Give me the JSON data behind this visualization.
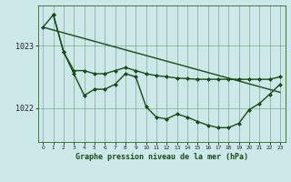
{
  "background_color": "#cce8e8",
  "grid_color": "#2d622d",
  "line_color": "#1a4a1a",
  "xlabel": "Graphe pression niveau de la mer (hPa)",
  "xlim": [
    -0.5,
    23.5
  ],
  "ylim": [
    1021.45,
    1023.65
  ],
  "yticks": [
    1022,
    1023
  ],
  "xticks": [
    0,
    1,
    2,
    3,
    4,
    5,
    6,
    7,
    8,
    9,
    10,
    11,
    12,
    13,
    14,
    15,
    16,
    17,
    18,
    19,
    20,
    21,
    22,
    23
  ],
  "series": [
    {
      "x": [
        0,
        23
      ],
      "y": [
        1023.3,
        1022.25
      ],
      "marker": false,
      "linewidth": 1.0
    },
    {
      "x": [
        0,
        1,
        2,
        3,
        4,
        5,
        6,
        7,
        8,
        9,
        10,
        11,
        12,
        13,
        14,
        15,
        16,
        17,
        18,
        19,
        20,
        21,
        22,
        23
      ],
      "y": [
        1023.3,
        1023.5,
        1022.9,
        1022.6,
        1022.6,
        1022.55,
        1022.55,
        1022.6,
        1022.65,
        1022.6,
        1022.55,
        1022.52,
        1022.5,
        1022.48,
        1022.47,
        1022.46,
        1022.46,
        1022.46,
        1022.46,
        1022.46,
        1022.46,
        1022.46,
        1022.46,
        1022.5
      ],
      "marker": true,
      "linewidth": 1.0
    },
    {
      "x": [
        1,
        2,
        3,
        4,
        5,
        6,
        7,
        8,
        9,
        10,
        11,
        12,
        13,
        14,
        15,
        16,
        17,
        18,
        19,
        20,
        21,
        22,
        23
      ],
      "y": [
        1023.5,
        1022.9,
        1022.55,
        1022.2,
        1022.3,
        1022.3,
        1022.38,
        1022.55,
        1022.5,
        1022.02,
        1021.85,
        1021.82,
        1021.9,
        1021.85,
        1021.78,
        1021.72,
        1021.68,
        1021.68,
        1021.75,
        1021.97,
        1022.07,
        1022.22,
        1022.38
      ],
      "marker": true,
      "linewidth": 1.0
    }
  ]
}
